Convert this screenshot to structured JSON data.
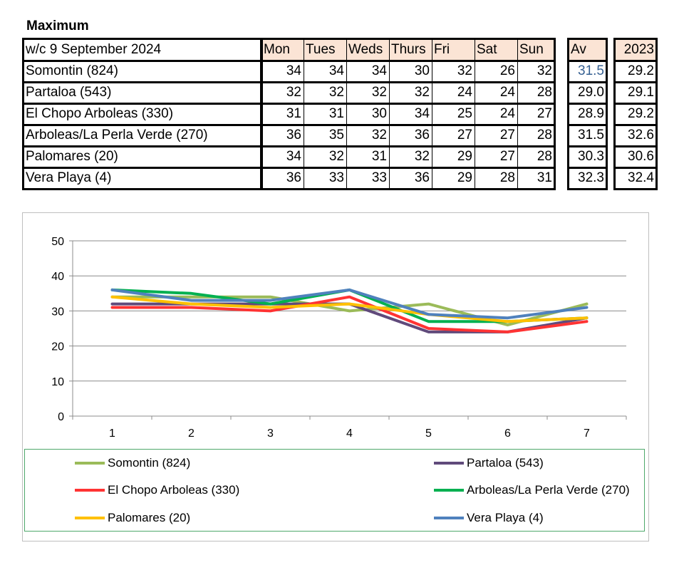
{
  "page_title": "Maximum",
  "table": {
    "week_label": "w/c  9 September 2024",
    "days": [
      "Mon",
      "Tues",
      "Weds",
      "Thurs",
      "Fri",
      "Sat",
      "Sun"
    ],
    "av_header": "Av",
    "year_header": "2023",
    "rows": [
      {
        "name": "Somontin (824)",
        "values": [
          "34",
          "34",
          "34",
          "30",
          "32",
          "26",
          "32"
        ],
        "av": "31.5",
        "prev": "29.2"
      },
      {
        "name": "Partaloa (543)",
        "values": [
          "32",
          "32",
          "32",
          "32",
          "24",
          "24",
          "28"
        ],
        "av": "29.0",
        "prev": "29.1"
      },
      {
        "name": "El Chopo  Arboleas (330)",
        "values": [
          "31",
          "31",
          "30",
          "34",
          "25",
          "24",
          "27"
        ],
        "av": "28.9",
        "prev": "29.2"
      },
      {
        "name": "Arboleas/La Perla Verde (270)",
        "values": [
          "36",
          "35",
          "32",
          "36",
          "27",
          "27",
          "28"
        ],
        "av": "31.5",
        "prev": "32.6"
      },
      {
        "name": "Palomares (20)",
        "values": [
          "34",
          "32",
          "31",
          "32",
          "29",
          "27",
          "28"
        ],
        "av": "30.3",
        "prev": "30.6"
      },
      {
        "name": "Vera Playa (4)",
        "values": [
          "36",
          "33",
          "33",
          "36",
          "29",
          "28",
          "31"
        ],
        "av": "32.3",
        "prev": "32.4"
      }
    ]
  },
  "chart_data": {
    "type": "line",
    "title": "",
    "xlabel": "",
    "ylabel": "",
    "categories": [
      "1",
      "2",
      "3",
      "4",
      "5",
      "6",
      "7"
    ],
    "ylim": [
      0,
      50
    ],
    "yticks": [
      "0",
      "10",
      "20",
      "30",
      "40",
      "50"
    ],
    "grid": true,
    "legend_position": "bottom",
    "series": [
      {
        "name": "Somontin (824)",
        "color": "#9bbb59",
        "values": [
          34,
          34,
          34,
          30,
          32,
          26,
          32
        ]
      },
      {
        "name": "Partaloa (543)",
        "color": "#604a7b",
        "values": [
          32,
          32,
          32,
          32,
          24,
          24,
          28
        ]
      },
      {
        "name": "El Chopo  Arboleas (330)",
        "color": "#ff3333",
        "values": [
          31,
          31,
          30,
          34,
          25,
          24,
          27
        ]
      },
      {
        "name": "Arboleas/La Perla Verde (270)",
        "color": "#00b050",
        "values": [
          36,
          35,
          32,
          36,
          27,
          27,
          28
        ]
      },
      {
        "name": "Palomares (20)",
        "color": "#ffc000",
        "values": [
          34,
          32,
          31,
          32,
          29,
          27,
          28
        ]
      },
      {
        "name": "Vera Playa (4)",
        "color": "#4f81bd",
        "values": [
          36,
          33,
          33,
          36,
          29,
          28,
          31
        ]
      }
    ]
  }
}
